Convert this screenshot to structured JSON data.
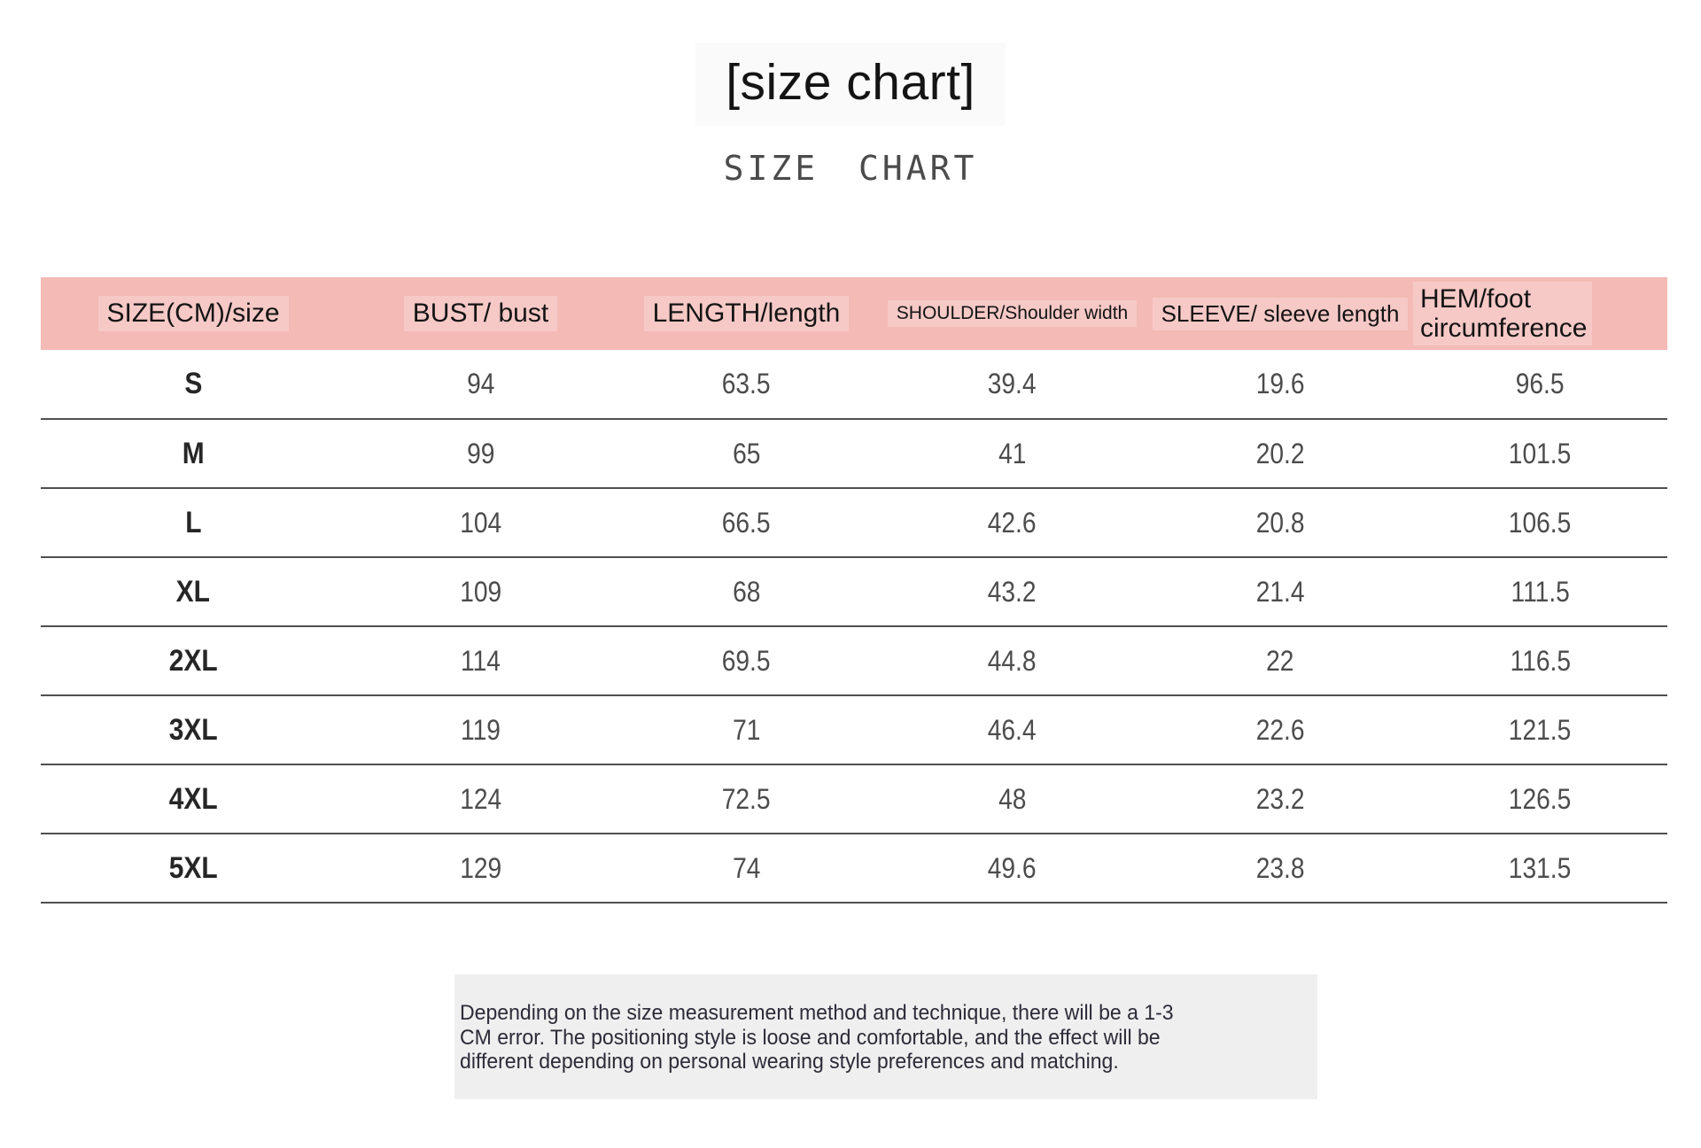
{
  "page": {
    "title": "[size chart]",
    "subtitle": "SIZE CHART"
  },
  "size_table": {
    "columns": [
      "SIZE(CM)/size",
      "BUST/ bust",
      "LENGTH/length",
      "SHOULDER/Shoulder width",
      "SLEEVE/ sleeve length",
      "HEM/foot\ncircumference"
    ],
    "rows": [
      {
        "size": "S",
        "bust": "94",
        "length": "63.5",
        "shoulder": "39.4",
        "sleeve": "19.6",
        "hem": "96.5"
      },
      {
        "size": "M",
        "bust": "99",
        "length": "65",
        "shoulder": "41",
        "sleeve": "20.2",
        "hem": "101.5"
      },
      {
        "size": "L",
        "bust": "104",
        "length": "66.5",
        "shoulder": "42.6",
        "sleeve": "20.8",
        "hem": "106.5"
      },
      {
        "size": "XL",
        "bust": "109",
        "length": "68",
        "shoulder": "43.2",
        "sleeve": "21.4",
        "hem": "111.5"
      },
      {
        "size": "2XL",
        "bust": "114",
        "length": "69.5",
        "shoulder": "44.8",
        "sleeve": "22",
        "hem": "116.5"
      },
      {
        "size": "3XL",
        "bust": "119",
        "length": "71",
        "shoulder": "46.4",
        "sleeve": "22.6",
        "hem": "121.5"
      },
      {
        "size": "4XL",
        "bust": "124",
        "length": "72.5",
        "shoulder": "48",
        "sleeve": "23.2",
        "hem": "126.5"
      },
      {
        "size": "5XL",
        "bust": "129",
        "length": "74",
        "shoulder": "49.6",
        "sleeve": "23.8",
        "hem": "131.5"
      }
    ]
  },
  "footer": {
    "note": "Depending on the size measurement method and technique, there will be a 1-3\nCM error. The positioning style is loose and comfortable, and the effect will be\ndifferent depending on personal wearing style preferences and matching."
  },
  "colors": {
    "header_bg": "#f4bab6",
    "divider": "#4f4f4f",
    "label_text": "#262626",
    "value_text": "#4c4c4c",
    "note_bg": "#efefef"
  }
}
